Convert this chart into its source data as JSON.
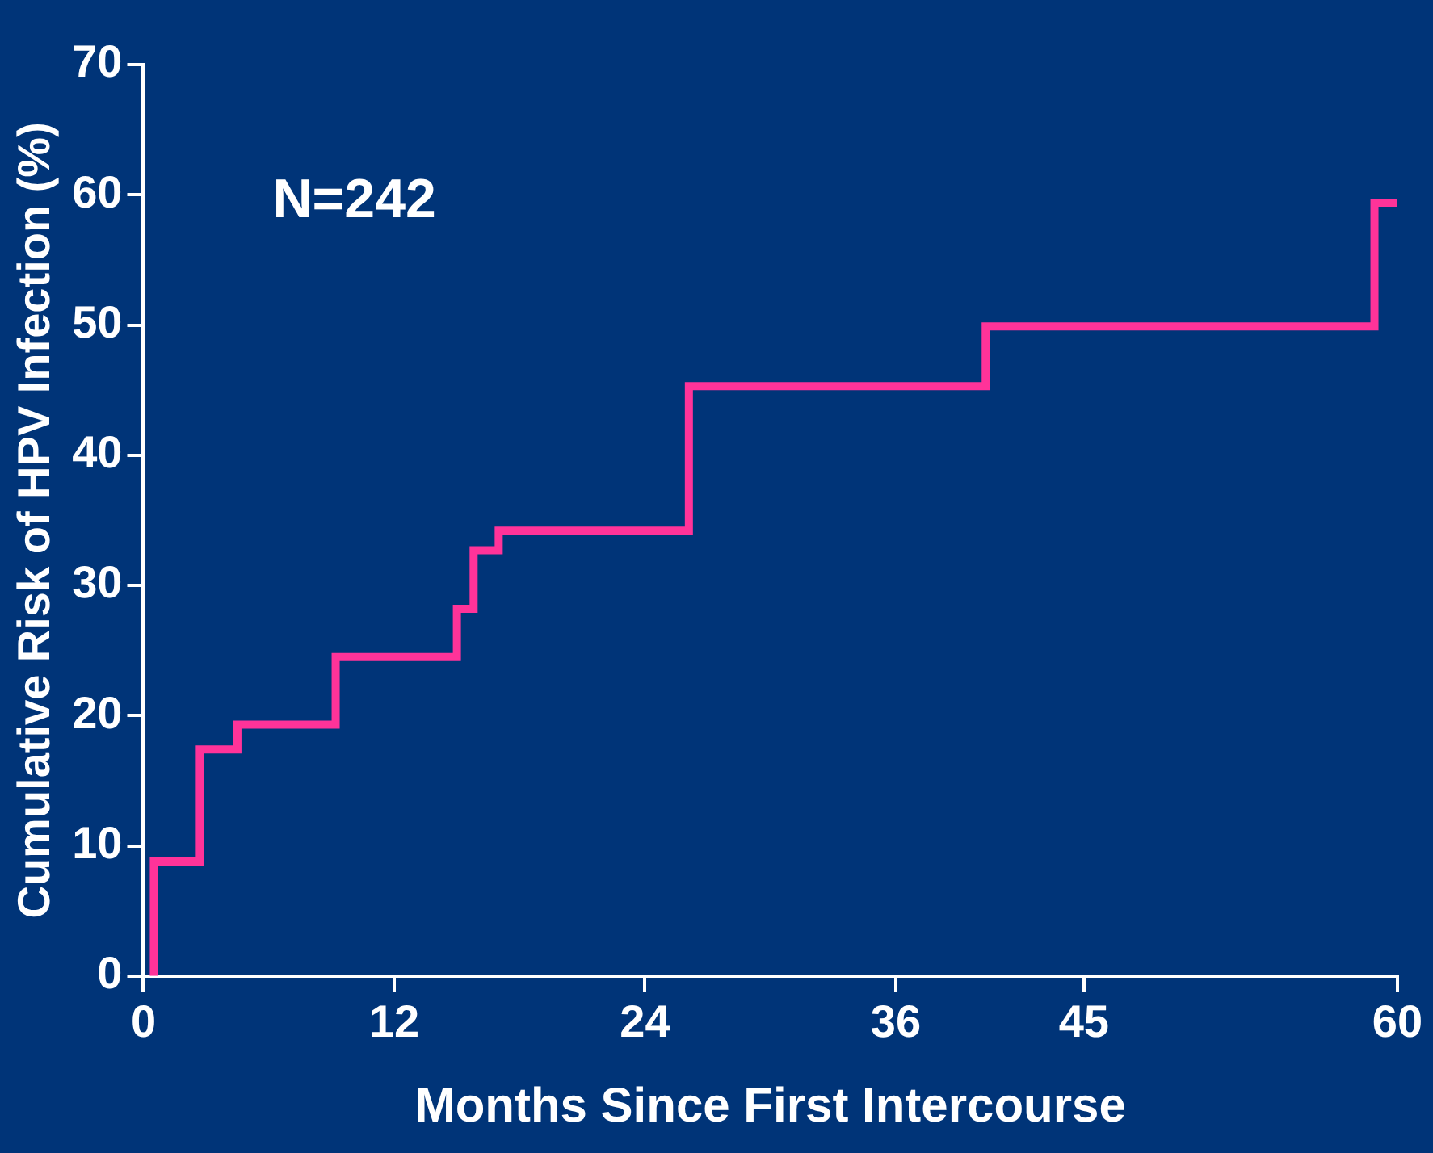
{
  "chart_data": {
    "type": "step",
    "xlabel": "Months Since First Intercourse",
    "ylabel": "Cumulative Risk of HPV Infection (%)",
    "annotations": [
      "N=242"
    ],
    "x": [
      0.5,
      0.5,
      2.7,
      4.5,
      9.2,
      15.0,
      15.8,
      17.0,
      26.1,
      40.3,
      58.9,
      60
    ],
    "series": [
      {
        "color": "#ff3399",
        "values": [
          0,
          8.8,
          17.4,
          19.3,
          24.5,
          28.2,
          32.7,
          34.2,
          45.3,
          49.9,
          59.4,
          59.4
        ]
      }
    ],
    "xlim": [
      0,
      60
    ],
    "xticks": [
      0,
      12,
      24,
      36,
      45,
      60
    ],
    "ylim": [
      0,
      70
    ],
    "yticks": [
      0,
      10,
      20,
      30,
      40,
      50,
      60,
      70
    ],
    "grid": false,
    "legend": false,
    "marker": "none",
    "line_style": "solid"
  }
}
